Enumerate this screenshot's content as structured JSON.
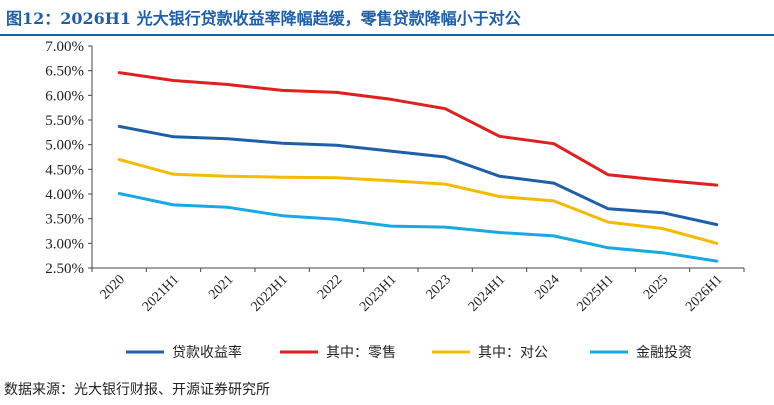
{
  "title": "图12：2026H1 光大银行贷款收益率降幅趋缓，零售贷款降幅小于对公",
  "source": "数据来源：光大银行财报、开源证券研究所",
  "chart_data": {
    "type": "line",
    "categories": [
      "2020",
      "2021H1",
      "2021",
      "2022H1",
      "2022",
      "2023H1",
      "2023",
      "2024H1",
      "2024",
      "2025H1",
      "2025",
      "2026H1"
    ],
    "y_ticks": [
      "7.00%",
      "6.50%",
      "6.00%",
      "5.50%",
      "5.00%",
      "4.50%",
      "4.00%",
      "3.50%",
      "3.00%",
      "2.50%"
    ],
    "ylim": [
      2.5,
      7.0
    ],
    "grid": false,
    "legend_position": "bottom",
    "series": [
      {
        "name": "贷款收益率",
        "color": "#1f5fa8",
        "values": [
          5.37,
          5.16,
          5.12,
          5.03,
          4.99,
          4.87,
          4.75,
          4.36,
          4.22,
          3.7,
          3.62,
          3.38
        ]
      },
      {
        "name": "其中：零售",
        "color": "#e01f1f",
        "values": [
          6.46,
          6.3,
          6.22,
          6.1,
          6.06,
          5.92,
          5.73,
          5.17,
          5.02,
          4.39,
          4.28,
          4.18
        ]
      },
      {
        "name": "其中：对公",
        "color": "#f5bb00",
        "values": [
          4.7,
          4.4,
          4.36,
          4.34,
          4.33,
          4.27,
          4.2,
          3.95,
          3.86,
          3.43,
          3.3,
          3.0
        ]
      },
      {
        "name": "金融投资",
        "color": "#17a9e3",
        "values": [
          4.01,
          3.78,
          3.73,
          3.56,
          3.49,
          3.35,
          3.33,
          3.22,
          3.15,
          2.91,
          2.81,
          2.64
        ]
      }
    ]
  }
}
